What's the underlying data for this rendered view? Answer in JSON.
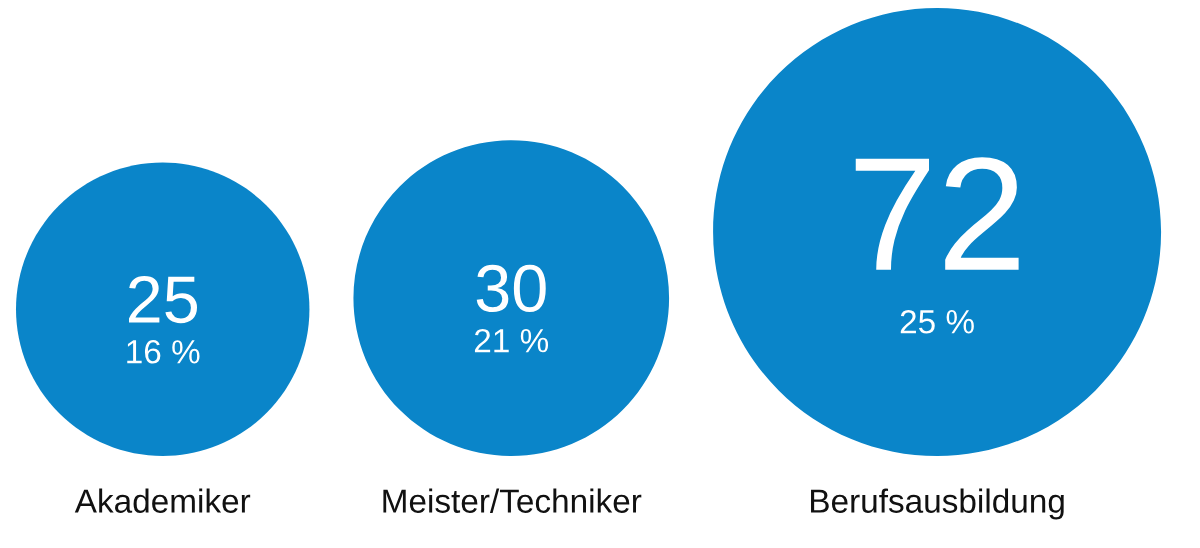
{
  "chart_data": {
    "type": "other",
    "categories": [
      "Akademiker",
      "Meister/Techniker",
      "Berufsausbildung"
    ],
    "color": "#0a85c9",
    "values": [
      25,
      30,
      72
    ],
    "data_labels": true,
    "annotations": [
      "16 %",
      "21 %",
      "25 %"
    ]
  }
}
